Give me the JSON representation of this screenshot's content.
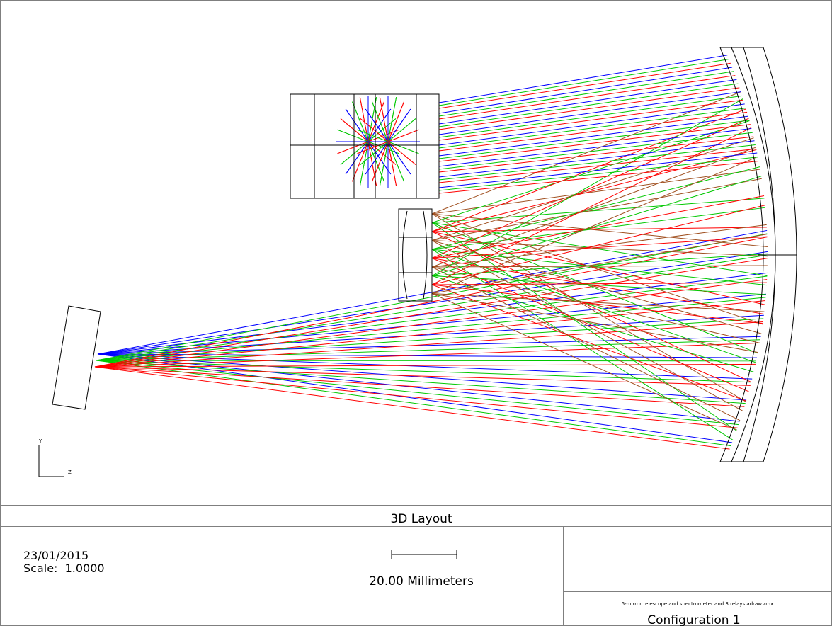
{
  "plot": {
    "axis_labels": {
      "y": "Y",
      "z": "Z"
    }
  },
  "title": "3D Layout",
  "footer": {
    "date": "23/01/2015",
    "scale": "Scale:  1.0000",
    "scale_bar_label": "20.00 Millimeters",
    "file_name": "5-mirror telescope and spectrometer and 3 relays adraw.zmx",
    "configuration": "Configuration 1"
  }
}
